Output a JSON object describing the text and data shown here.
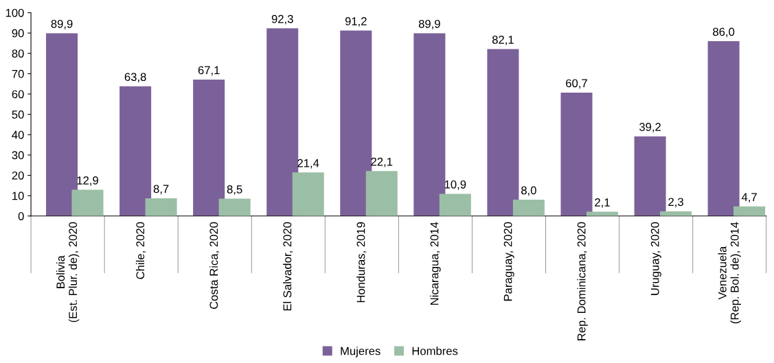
{
  "chart_data": {
    "type": "bar",
    "categories": [
      "Bolivia\n(Est. Plur. de), 2020",
      "Chile, 2020",
      "Costa Rica, 2020",
      "El Salvador, 2020",
      "Honduras, 2019",
      "Nicaragua, 2014",
      "Paraguay, 2020",
      "Rep. Dominicana, 2020",
      "Uruguay, 2020",
      "Venezuela\n(Rep. Bol. de), 2014"
    ],
    "series": [
      {
        "name": "Mujeres",
        "color": "#7b6199",
        "values": [
          89.9,
          63.8,
          67.1,
          92.3,
          91.2,
          89.9,
          82.1,
          60.7,
          39.2,
          86.0
        ],
        "value_labels": [
          "89,9",
          "63,8",
          "67,1",
          "92,3",
          "91,2",
          "89,9",
          "82,1",
          "60,7",
          "39,2",
          "86,0"
        ]
      },
      {
        "name": "Hombres",
        "color": "#9bbfa6",
        "values": [
          12.9,
          8.7,
          8.5,
          21.4,
          22.1,
          10.9,
          8.0,
          2.1,
          2.3,
          4.7
        ],
        "value_labels": [
          "12,9",
          "8,7",
          "8,5",
          "21,4",
          "22,1",
          "10,9",
          "8,0",
          "2,1",
          "2,3",
          "4,7"
        ]
      }
    ],
    "ylim": [
      0,
      100
    ],
    "yticks": [
      0,
      10,
      20,
      30,
      40,
      50,
      60,
      70,
      80,
      90,
      100
    ],
    "grid": false,
    "legend": "bottom"
  }
}
